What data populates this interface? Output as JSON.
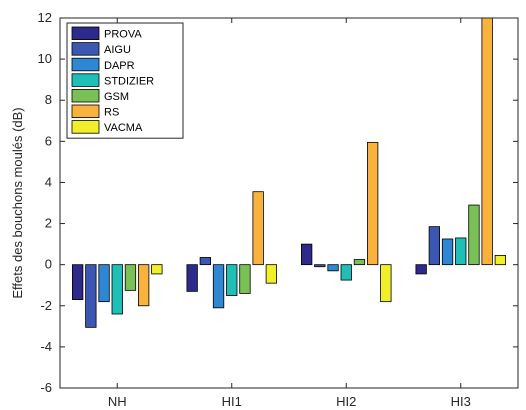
{
  "chart_data": {
    "type": "bar",
    "title": "",
    "xlabel": "",
    "ylabel": "Effets des bouchons moulés (dB)",
    "categories": [
      "NH",
      "HI1",
      "HI2",
      "HI3"
    ],
    "ylim": [
      -6,
      12
    ],
    "yticks": [
      -6,
      -4,
      -2,
      0,
      2,
      4,
      6,
      8,
      10,
      12
    ],
    "grid": false,
    "legend_position": "top-left",
    "series": [
      {
        "name": "PROVA",
        "color": "#2d2a8c",
        "values": [
          -1.7,
          -1.3,
          1.0,
          -0.45
        ]
      },
      {
        "name": "AIGU",
        "color": "#3b57b3",
        "values": [
          -3.05,
          0.35,
          -0.1,
          1.85
        ]
      },
      {
        "name": "DAPR",
        "color": "#2f86d3",
        "values": [
          -1.8,
          -2.1,
          -0.3,
          1.25
        ]
      },
      {
        "name": "STDIZIER",
        "color": "#1fbfb8",
        "values": [
          -2.4,
          -1.5,
          -0.75,
          1.3
        ]
      },
      {
        "name": "GSM",
        "color": "#79c055",
        "values": [
          -1.25,
          -1.4,
          0.25,
          2.9
        ]
      },
      {
        "name": "RS",
        "color": "#f9b23e",
        "values": [
          -2.0,
          3.55,
          5.95,
          12.0
        ]
      },
      {
        "name": "VACMA",
        "color": "#f1ee2a",
        "values": [
          -0.45,
          -0.9,
          -1.8,
          0.45
        ]
      }
    ]
  }
}
